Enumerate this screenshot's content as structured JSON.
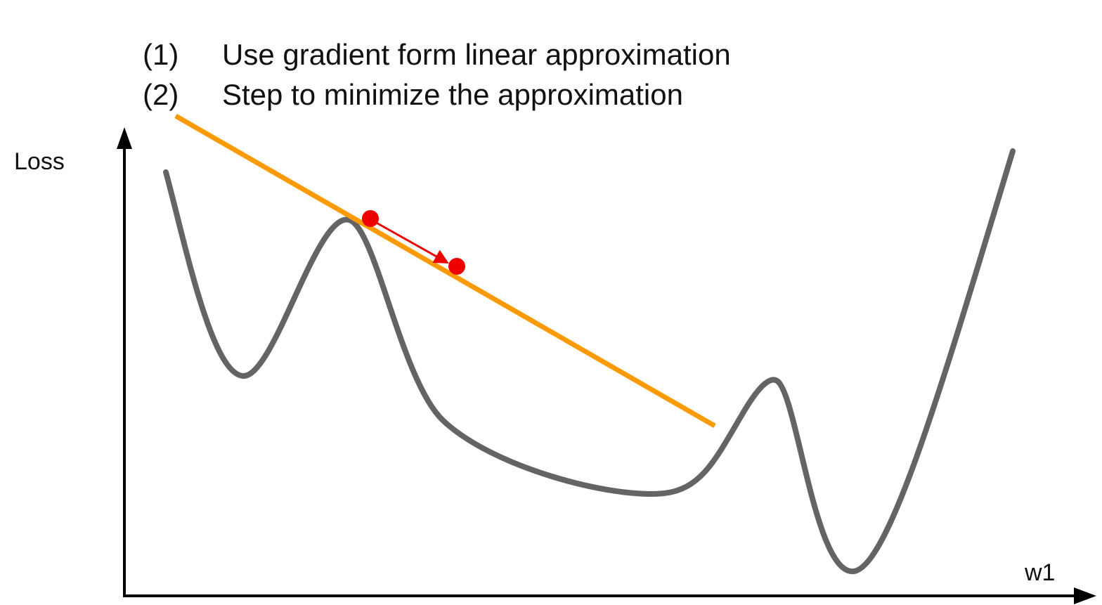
{
  "steps": [
    {
      "num": "(1)",
      "text": "Use gradient form linear approximation"
    },
    {
      "num": "(2)",
      "text": "Step to minimize the approximation"
    }
  ],
  "axes": {
    "y_label": "Loss",
    "x_label": "w1"
  },
  "colors": {
    "loss_curve": "#646464",
    "tangent_line": "#ff9900",
    "points": "#ee0000",
    "axes": "#000000",
    "text": "#111111"
  }
}
